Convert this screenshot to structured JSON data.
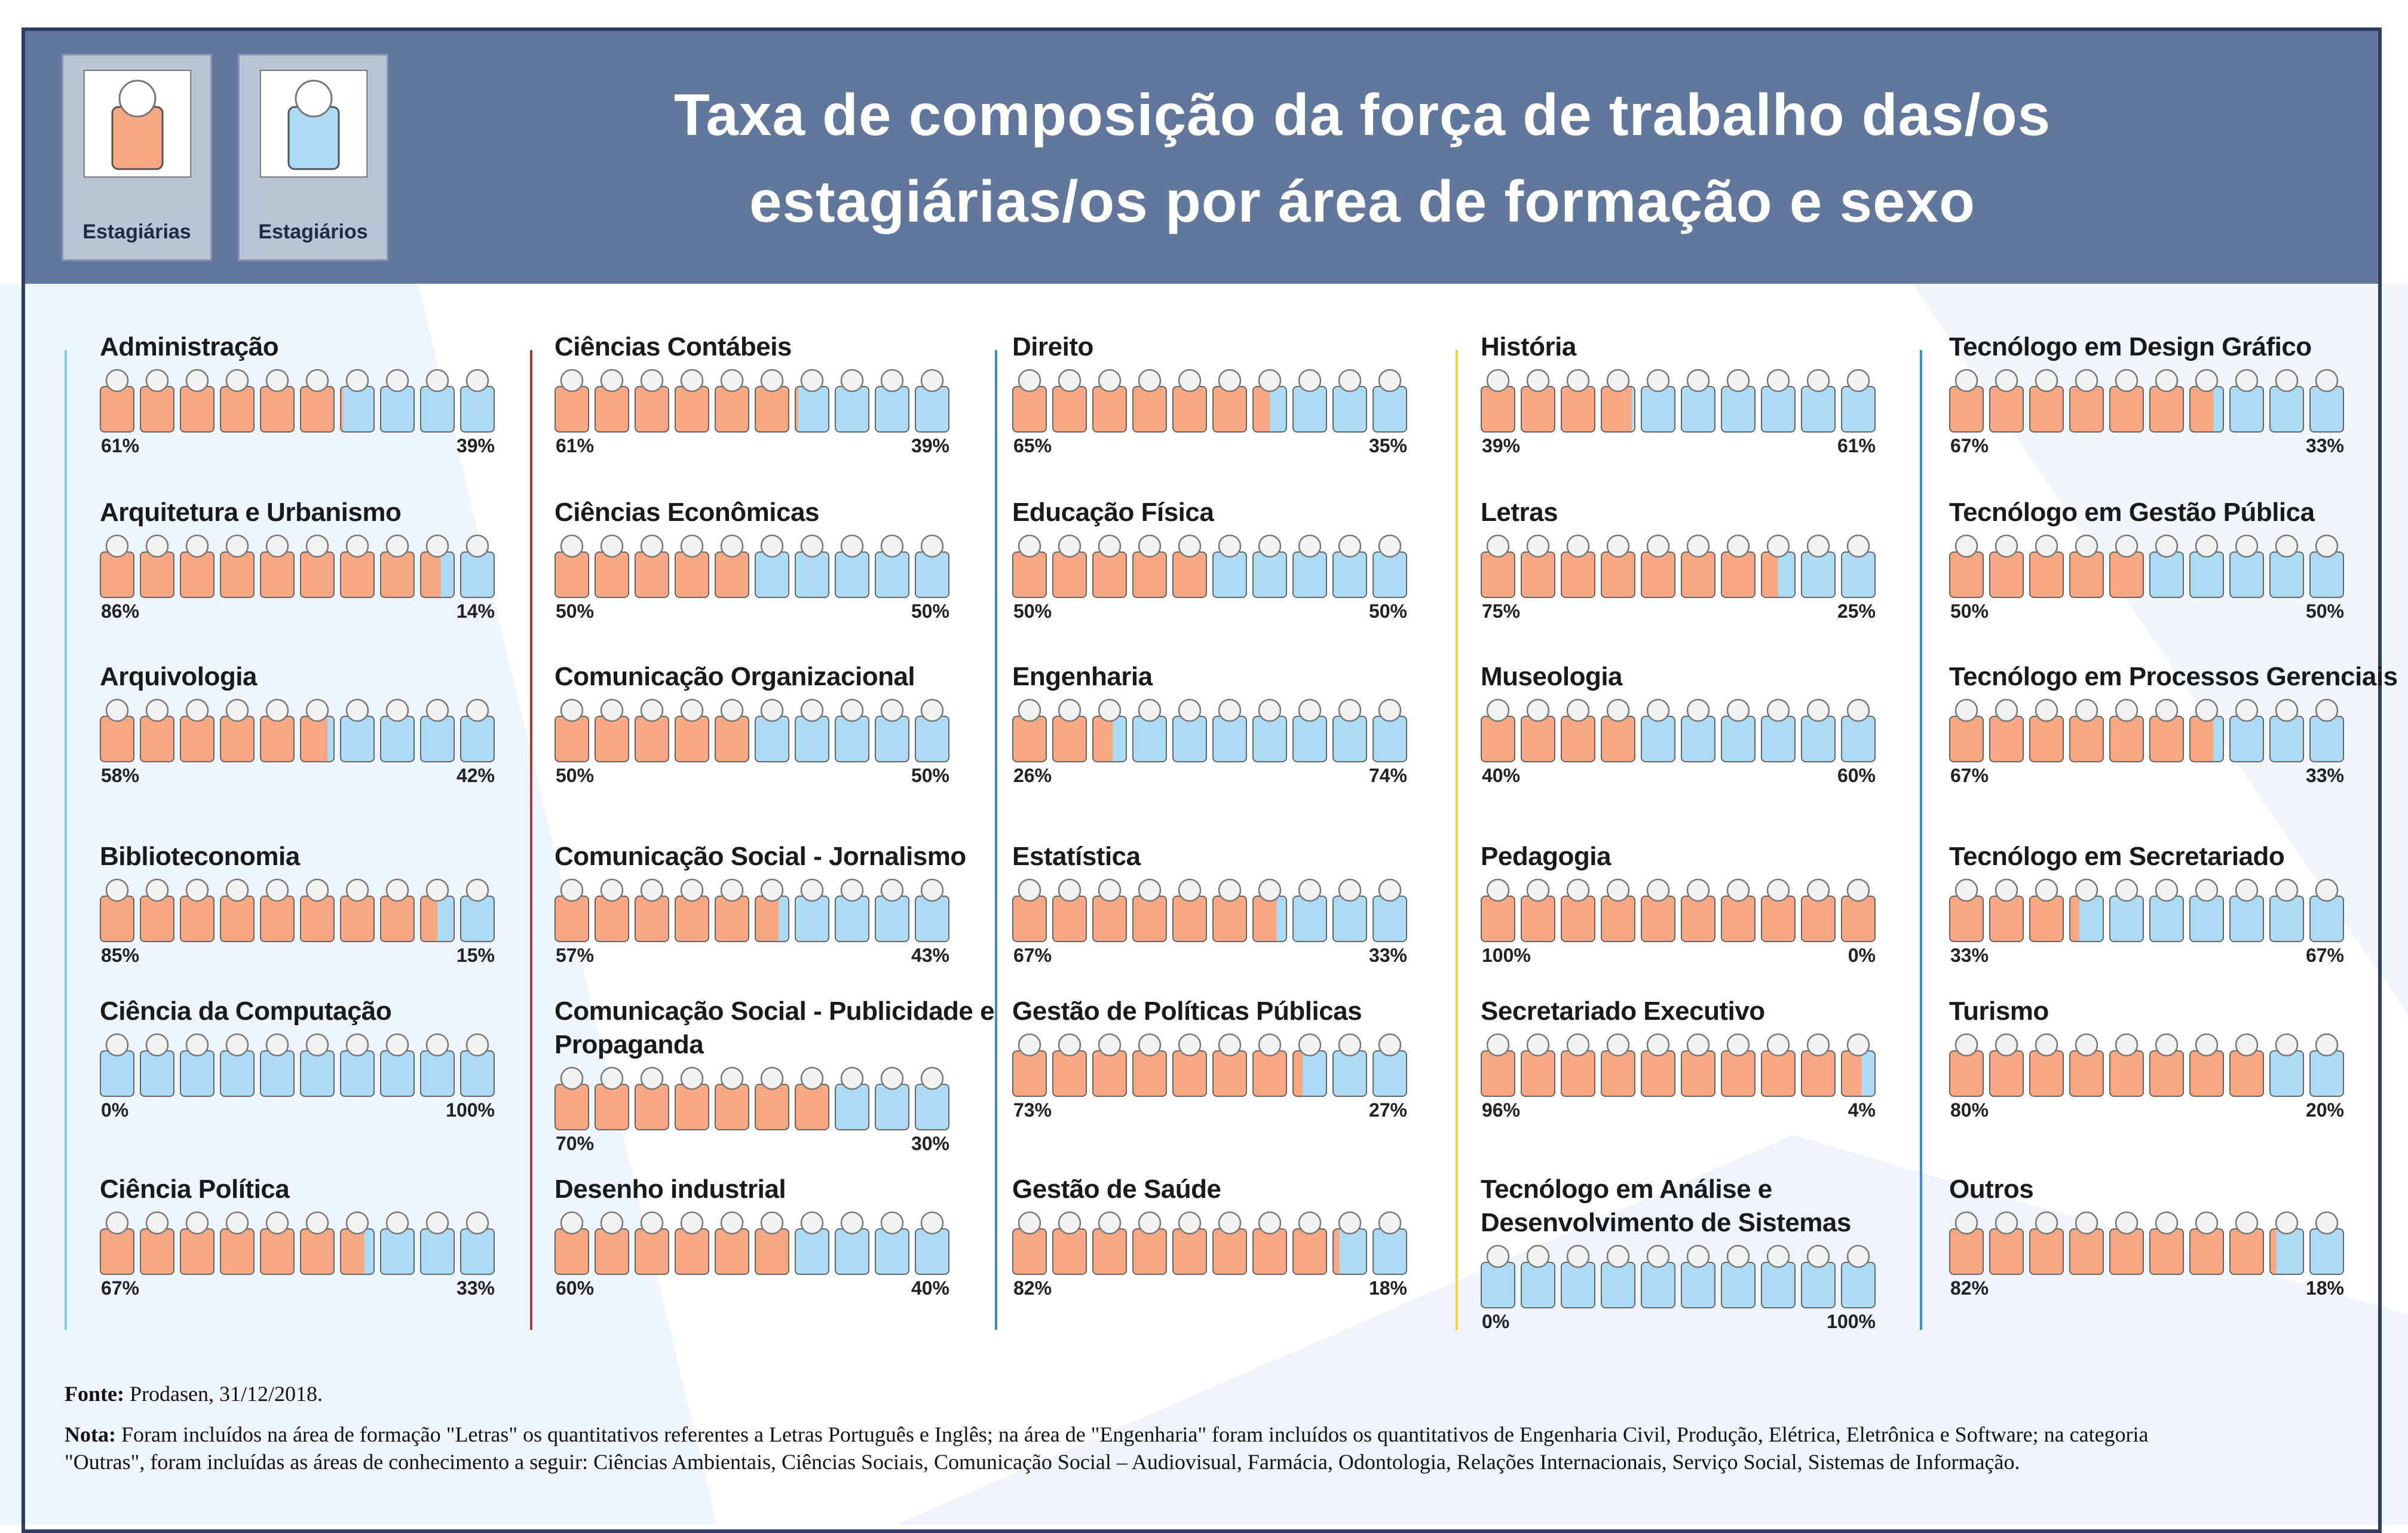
{
  "title": "Taxa de composição da força de trabalho das/os estagiárias/os por área de formação e sexo",
  "legend": [
    {
      "name": "Estagiárias",
      "color": "#f7a781"
    },
    {
      "name": "Estagiários",
      "color": "#acdcf5"
    }
  ],
  "chart_data": [
    {
      "type": "pictogram",
      "title": "Administração",
      "values": [
        61,
        39
      ],
      "value_labels": [
        "61%",
        "39%"
      ]
    },
    {
      "type": "pictogram",
      "title": "Arquitetura e Urbanismo",
      "values": [
        86,
        14
      ],
      "value_labels": [
        "86%",
        "14%"
      ]
    },
    {
      "type": "pictogram",
      "title": "Arquivologia",
      "values": [
        58,
        42
      ],
      "value_labels": [
        "58%",
        "42%"
      ]
    },
    {
      "type": "pictogram",
      "title": "Biblioteconomia",
      "values": [
        85,
        15
      ],
      "value_labels": [
        "85%",
        "15%"
      ]
    },
    {
      "type": "pictogram",
      "title": "Ciência da Computação",
      "values": [
        0,
        100
      ],
      "value_labels": [
        "0%",
        "100%"
      ]
    },
    {
      "type": "pictogram",
      "title": "Ciência Política",
      "values": [
        67,
        33
      ],
      "value_labels": [
        "67%",
        "33%"
      ]
    },
    {
      "type": "pictogram",
      "title": "Ciências Contábeis",
      "values": [
        61,
        39
      ],
      "value_labels": [
        "61%",
        "39%"
      ]
    },
    {
      "type": "pictogram",
      "title": "Ciências Econômicas",
      "values": [
        50,
        50
      ],
      "value_labels": [
        "50%",
        "50%"
      ]
    },
    {
      "type": "pictogram",
      "title": "Comunicação Organizacional",
      "values": [
        50,
        50
      ],
      "value_labels": [
        "50%",
        "50%"
      ]
    },
    {
      "type": "pictogram",
      "title": "Comunicação Social - Jornalismo",
      "values": [
        57,
        43
      ],
      "value_labels": [
        "57%",
        "43%"
      ]
    },
    {
      "type": "pictogram",
      "title": "Comunicação Social - Publicidade e Propaganda",
      "values": [
        70,
        30
      ],
      "value_labels": [
        "70%",
        "30%"
      ]
    },
    {
      "type": "pictogram",
      "title": "Desenho industrial",
      "values": [
        60,
        40
      ],
      "value_labels": [
        "60%",
        "40%"
      ]
    },
    {
      "type": "pictogram",
      "title": "Direito",
      "values": [
        65,
        35
      ],
      "value_labels": [
        "65%",
        "35%"
      ]
    },
    {
      "type": "pictogram",
      "title": "Educação Física",
      "values": [
        50,
        50
      ],
      "value_labels": [
        "50%",
        "50%"
      ]
    },
    {
      "type": "pictogram",
      "title": "Engenharia",
      "values": [
        26,
        74
      ],
      "value_labels": [
        "26%",
        "74%"
      ]
    },
    {
      "type": "pictogram",
      "title": "Estatística",
      "values": [
        67,
        33
      ],
      "value_labels": [
        "67%",
        "33%"
      ]
    },
    {
      "type": "pictogram",
      "title": "Gestão de Políticas Públicas",
      "values": [
        73,
        27
      ],
      "value_labels": [
        "73%",
        "27%"
      ]
    },
    {
      "type": "pictogram",
      "title": "Gestão de Saúde",
      "values": [
        82,
        18
      ],
      "value_labels": [
        "82%",
        "18%"
      ]
    },
    {
      "type": "pictogram",
      "title": "História",
      "values": [
        39,
        61
      ],
      "value_labels": [
        "39%",
        "61%"
      ]
    },
    {
      "type": "pictogram",
      "title": "Letras",
      "values": [
        75,
        25
      ],
      "value_labels": [
        "75%",
        "25%"
      ]
    },
    {
      "type": "pictogram",
      "title": "Museologia",
      "values": [
        40,
        60
      ],
      "value_labels": [
        "40%",
        "60%"
      ]
    },
    {
      "type": "pictogram",
      "title": "Pedagogia",
      "values": [
        100,
        0
      ],
      "value_labels": [
        "100%",
        "0%"
      ]
    },
    {
      "type": "pictogram",
      "title": "Secretariado Executivo",
      "values": [
        96,
        4
      ],
      "value_labels": [
        "96%",
        "4%"
      ]
    },
    {
      "type": "pictogram",
      "title": "Tecnólogo em Análise e Desenvolvimento de Sistemas",
      "values": [
        0,
        100
      ],
      "value_labels": [
        "0%",
        "100%"
      ]
    },
    {
      "type": "pictogram",
      "title": "Tecnólogo em Design Gráfico",
      "values": [
        67,
        33
      ],
      "value_labels": [
        "67%",
        "33%"
      ]
    },
    {
      "type": "pictogram",
      "title": "Tecnólogo em Gestão Pública",
      "values": [
        50,
        50
      ],
      "value_labels": [
        "50%",
        "50%"
      ]
    },
    {
      "type": "pictogram",
      "title": "Tecnólogo em Processos Gerenciais",
      "values": [
        67,
        33
      ],
      "value_labels": [
        "67%",
        "33%"
      ]
    },
    {
      "type": "pictogram",
      "title": "Tecnólogo em Secretariado",
      "values": [
        33,
        67
      ],
      "value_labels": [
        "33%",
        "67%"
      ]
    },
    {
      "type": "pictogram",
      "title": "Turismo",
      "values": [
        80,
        20
      ],
      "value_labels": [
        "80%",
        "20%"
      ]
    },
    {
      "type": "pictogram",
      "title": "Outros",
      "values": [
        82,
        18
      ],
      "value_labels": [
        "82%",
        "18%"
      ]
    }
  ],
  "footer": {
    "source_label": "Fonte:",
    "source": "Prodasen, 31/12/2018.",
    "note_label": "Nota:",
    "note": "Foram incluídos na área de formação \"Letras\" os quantitativos referentes a Letras Português e Inglês; na área de \"Engenharia\" foram incluídos os quantitativos de Engenharia Civil, Produção, Elétrica, Eletrônica e Software; na categoria \"Outras\", foram incluídas as áreas de conhecimento a seguir: Ciências Ambientais, Ciências Sociais, Comunicação Social – Audiovisual, Farmácia, Odontologia, Relações Internacionais, Serviço Social, Sistemas de Informação."
  }
}
